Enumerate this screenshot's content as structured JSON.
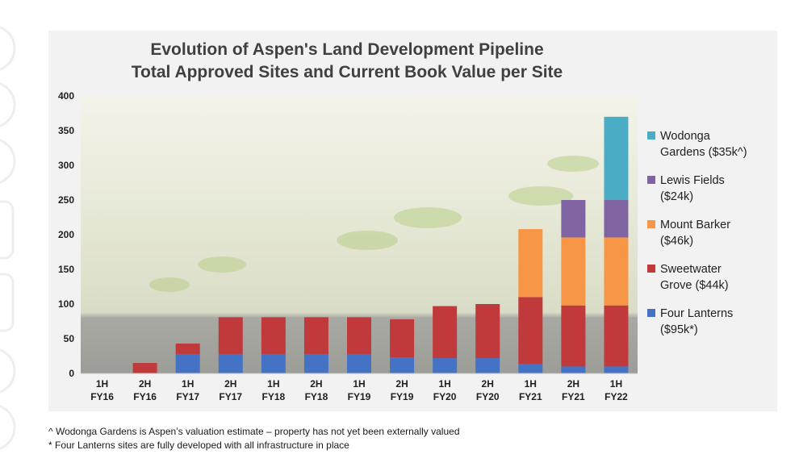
{
  "chart_data": {
    "type": "bar",
    "stacked": true,
    "title": [
      "Evolution of Aspen's Land Development Pipeline",
      "Total Approved Sites and Current Book Value per Site"
    ],
    "categories": [
      [
        "1H",
        "FY16"
      ],
      [
        "2H",
        "FY16"
      ],
      [
        "1H",
        "FY17"
      ],
      [
        "2H",
        "FY17"
      ],
      [
        "1H",
        "FY18"
      ],
      [
        "2H",
        "FY18"
      ],
      [
        "1H",
        "FY19"
      ],
      [
        "2H",
        "FY19"
      ],
      [
        "1H",
        "FY20"
      ],
      [
        "2H",
        "FY20"
      ],
      [
        "1H",
        "FY21"
      ],
      [
        "2H",
        "FY21"
      ],
      [
        "1H",
        "FY22"
      ]
    ],
    "ylim": [
      0,
      400
    ],
    "yticks": [
      0,
      50,
      100,
      150,
      200,
      250,
      300,
      350,
      400
    ],
    "series": [
      {
        "name": [
          "Four Lanterns",
          "($95k*)"
        ],
        "color": "#4472c4",
        "values": [
          0,
          0,
          28,
          28,
          28,
          28,
          28,
          23,
          22,
          22,
          14,
          10,
          10
        ]
      },
      {
        "name": [
          "Sweetwater",
          "Grove ($44k)"
        ],
        "color": "#c0393b",
        "values": [
          0,
          15,
          15,
          53,
          53,
          53,
          53,
          55,
          75,
          78,
          96,
          88,
          88
        ]
      },
      {
        "name": [
          "Mount Barker",
          "($46k)"
        ],
        "color": "#f79646",
        "values": [
          0,
          0,
          0,
          0,
          0,
          0,
          0,
          0,
          0,
          0,
          98,
          98,
          98
        ]
      },
      {
        "name": [
          "Lewis Fields",
          "($24k)"
        ],
        "color": "#8064a2",
        "values": [
          0,
          0,
          0,
          0,
          0,
          0,
          0,
          0,
          0,
          0,
          0,
          54,
          54
        ]
      },
      {
        "name": [
          "Wodonga",
          "Gardens ($35k^)"
        ],
        "color": "#4bacc6",
        "values": [
          0,
          0,
          0,
          0,
          0,
          0,
          0,
          0,
          0,
          0,
          0,
          0,
          120
        ]
      }
    ],
    "legend_position": "right"
  },
  "footnotes": [
    "^ Wodonga Gardens is Aspen’s valuation estimate – property has not yet been externally valued",
    "* Four Lanterns sites are fully developed with all infrastructure in place"
  ]
}
